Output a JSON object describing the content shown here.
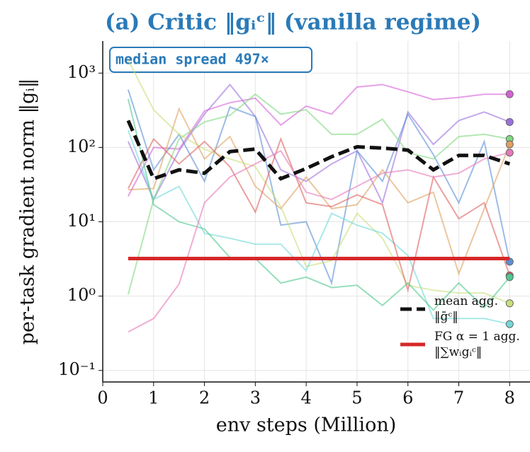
{
  "chart_data": {
    "type": "line",
    "title": "(a) Critic  ‖gᵢᶜ‖  (vanilla regime)",
    "annotation": "median spread 497×",
    "x_label": "env steps (Million)",
    "y_label": "per-task gradient norm  ‖gᵢ‖",
    "x": [
      0.5,
      1,
      1.5,
      2,
      2.5,
      3,
      3.5,
      4,
      4.5,
      5,
      5.5,
      6,
      6.5,
      7,
      7.5,
      8
    ],
    "xlim": [
      0,
      8.4
    ],
    "xticks": [
      0,
      1,
      2,
      3,
      4,
      5,
      6,
      7,
      8
    ],
    "ylim": [
      0.07,
      2700
    ],
    "ylog": true,
    "yticks": [
      {
        "value": 0.1,
        "label": "10⁻¹"
      },
      {
        "value": 1,
        "label": "10⁰"
      },
      {
        "value": 10,
        "label": "10¹"
      },
      {
        "value": 100,
        "label": "10²"
      },
      {
        "value": 1000,
        "label": "10³"
      }
    ],
    "grid": true,
    "legend": "lower right",
    "series": [
      {
        "color": "#9b6fe0",
        "values": [
          120,
          20,
          90,
          280,
          700,
          260,
          50,
          35,
          60,
          90,
          18,
          300,
          110,
          230,
          300,
          220
        ]
      },
      {
        "color": "#d65fd8",
        "values": [
          22,
          100,
          95,
          310,
          400,
          460,
          200,
          360,
          280,
          650,
          700,
          560,
          440,
          470,
          520,
          520
        ]
      },
      {
        "color": "#5b8fd6",
        "values": [
          600,
          50,
          150,
          35,
          350,
          260,
          9,
          10,
          1.5,
          90,
          35,
          280,
          80,
          18,
          120,
          2.9
        ]
      },
      {
        "color": "#7fd87f",
        "values": [
          1.05,
          20,
          130,
          220,
          270,
          520,
          280,
          320,
          150,
          150,
          240,
          85,
          70,
          140,
          150,
          130
        ]
      },
      {
        "color": "#e0a060",
        "values": [
          27,
          28,
          330,
          70,
          140,
          30,
          15,
          40,
          15,
          17,
          50,
          18,
          25,
          2.0,
          15,
          110
        ]
      },
      {
        "color": "#c8e07a",
        "values": [
          1500,
          320,
          150,
          95,
          70,
          55,
          16,
          2.5,
          3.0,
          13,
          6.0,
          1.4,
          1.2,
          1.1,
          1.1,
          0.8
        ]
      },
      {
        "color": "#70d8d8",
        "values": [
          170,
          20,
          30,
          7,
          6,
          5,
          5,
          2.2,
          13,
          9,
          7,
          3.5,
          0.5,
          0.5,
          0.5,
          0.42
        ]
      },
      {
        "color": "#e06060",
        "values": [
          28,
          130,
          60,
          120,
          55,
          13.5,
          130,
          18,
          16,
          23,
          17,
          1.2,
          40,
          11,
          18,
          1.9
        ]
      },
      {
        "color": "#50c890",
        "values": [
          450,
          17,
          10,
          8,
          3.3,
          3.2,
          1.5,
          1.8,
          1.3,
          1.4,
          0.75,
          1.5,
          0.65,
          1.5,
          0.7,
          1.8
        ]
      },
      {
        "color": "#e878b8",
        "values": [
          0.33,
          0.5,
          1.45,
          18,
          40,
          60,
          90,
          25,
          20,
          30,
          45,
          50,
          40,
          45,
          70,
          85
        ]
      },
      {
        "name": "mean agg.\n‖ḡᶜ‖",
        "color": "#111111",
        "dashed": true,
        "values": [
          230,
          38,
          50,
          45,
          88,
          95,
          38,
          52,
          75,
          102,
          98,
          92,
          50,
          78,
          78,
          60
        ]
      },
      {
        "name": "FG α = 1 agg.\n‖∑wᵢgᵢᶜ‖",
        "color": "#d62728",
        "values": [
          3.2,
          3.2,
          3.2,
          3.2,
          3.2,
          3.2,
          3.2,
          3.2,
          3.2,
          3.2,
          3.2,
          3.2,
          3.2,
          3.2,
          3.2,
          3.2
        ]
      }
    ]
  }
}
